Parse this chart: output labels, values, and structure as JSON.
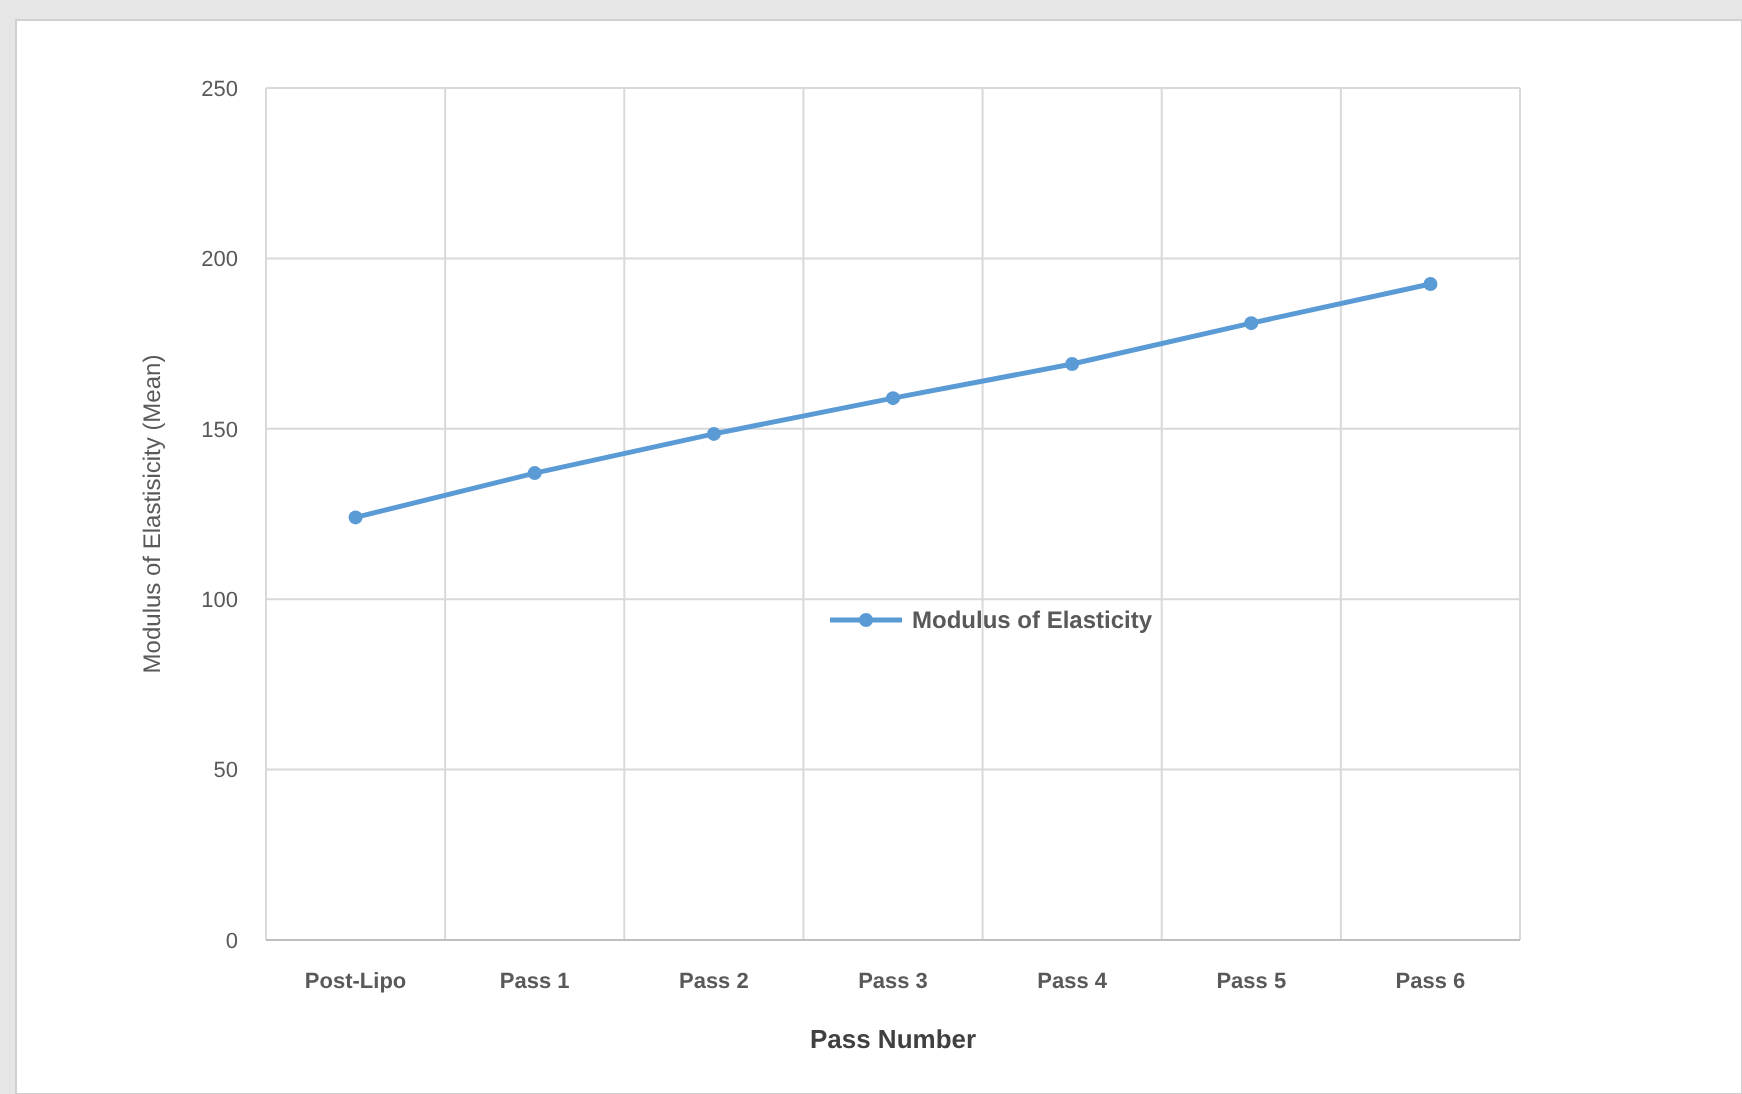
{
  "chart_data": {
    "type": "line",
    "xlabel": "Pass Number",
    "ylabel": "Modulus of Elastisicity (Mean)",
    "categories": [
      "Post-Lipo",
      "Pass 1",
      "Pass 2",
      "Pass 3",
      "Pass 4",
      "Pass 5",
      "Pass 6"
    ],
    "series": [
      {
        "name": "Modulus of Elasticity",
        "color": "#5b9bd5",
        "values": [
          124,
          137,
          148.5,
          159,
          169,
          181,
          192.5
        ]
      }
    ],
    "ylim": [
      0,
      250
    ],
    "yticks": [
      0,
      50,
      100,
      150,
      200,
      250
    ],
    "grid": true,
    "legend": "center",
    "marker": "circle",
    "line_style": "solid"
  }
}
